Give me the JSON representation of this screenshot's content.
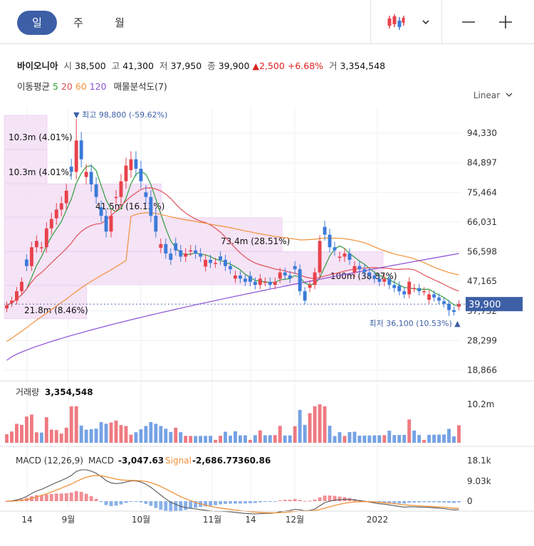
{
  "tabs": [
    {
      "label": "일"
    },
    {
      "label": "주"
    },
    {
      "label": "월"
    }
  ],
  "toolbar": {
    "chart_type_icon": "candlestick-icon",
    "dropdown_icon": "chevron-down-icon",
    "zoom_out_icon": "minus-icon",
    "zoom_in_icon": "plus-icon"
  },
  "info": {
    "name": "바이오니아",
    "open_label": "시",
    "open": "38,500",
    "high_label": "고",
    "high": "41,300",
    "low_label": "저",
    "low": "37,950",
    "close_label": "종",
    "close": "39,900",
    "change": "2,500",
    "change_pct": "+6.68%",
    "volume_label": "거",
    "volume": "3,354,548"
  },
  "ma_legend": {
    "label": "이동평균",
    "p5": "5",
    "p20": "20",
    "p60": "60",
    "p120": "120",
    "analysis": "매물분석도(7)"
  },
  "scale_mode": "Linear",
  "colors": {
    "up": "#e8424c",
    "down": "#3b7bd8",
    "ma5": "#2e9e3a",
    "ma20": "#e0505a",
    "ma60": "#f0913a",
    "ma120": "#8a4fd6",
    "profile": "#f3def5",
    "accent": "#3d5fa6"
  },
  "annotations": {
    "high": "최고 98,800 (-59.62%)",
    "low": "최저 36,100 (10.53%)",
    "last_price": "39,900"
  },
  "volume_panel": {
    "label": "거래량",
    "value": "3,354,548",
    "axis": [
      "10.2m"
    ]
  },
  "macd_panel": {
    "label": "MACD (12,26,9)",
    "macd_label": "MACD",
    "macd": "-3,047.63",
    "signal_label": "Signal",
    "signal": "-2,686.77",
    "hist": "-360.86",
    "axis": [
      "18.1k",
      "9.03k",
      "0"
    ]
  },
  "chart_data": {
    "type": "candlestick",
    "price_axis": [
      "94,330",
      "84,897",
      "75,464",
      "66,031",
      "56,598",
      "47,165",
      "37,732",
      "28,299",
      "18,866"
    ],
    "price_ticks": [
      94330,
      84897,
      75464,
      66031,
      56598,
      47165,
      37732,
      28299,
      18866
    ],
    "ylim": [
      18866,
      94330
    ],
    "x_ticks": [
      "14",
      "9월",
      "10월",
      "11월",
      "14",
      "12월",
      "2022"
    ],
    "volume_profile": [
      {
        "label": "10.3m (4.01%)",
        "low": 89000,
        "high": 100000,
        "pct": 4.01
      },
      {
        "label": "10.3m (4.01%)",
        "low": 78200,
        "high": 89000,
        "pct": 4.01
      },
      {
        "label": "41.5m (16.13%)",
        "low": 67400,
        "high": 78200,
        "pct": 16.13
      },
      {
        "label": "73.4m (28.51%)",
        "low": 56600,
        "high": 67400,
        "pct": 28.51
      },
      {
        "label": "100m (38.87%)",
        "low": 45800,
        "high": 56600,
        "pct": 38.87
      },
      {
        "label": "21.8m (8.46%)",
        "low": 35000,
        "high": 45800,
        "pct": 8.46
      }
    ],
    "closes": [
      39500,
      41000,
      44000,
      47000,
      52000,
      58000,
      60000,
      58000,
      64000,
      67000,
      70000,
      72000,
      76000,
      82000,
      92000,
      86000,
      82000,
      78000,
      74000,
      68000,
      63000,
      68000,
      74000,
      79000,
      84000,
      86000,
      83000,
      79000,
      74000,
      68000,
      63000,
      59000,
      56000,
      54000,
      57000,
      55000,
      56000,
      57000,
      56000,
      55000,
      54000,
      53000,
      53000,
      54000,
      52000,
      51000,
      49000,
      48000,
      47000,
      47000,
      46000,
      48000,
      47000,
      46000,
      47000,
      50000,
      49000,
      48000,
      51000,
      44000,
      41000,
      46000,
      50000,
      60000,
      62000,
      58000,
      57000,
      55000,
      56000,
      54000,
      52000,
      51000,
      50000,
      49000,
      48000,
      47000,
      48000,
      46000,
      45000,
      44000,
      43000,
      47000,
      45000,
      44000,
      44000,
      43000,
      42000,
      41000,
      40000,
      38000,
      37400,
      39900
    ],
    "high_point": {
      "value": 98800,
      "index": 14
    },
    "low_point": {
      "value": 36100,
      "index": 89
    }
  }
}
